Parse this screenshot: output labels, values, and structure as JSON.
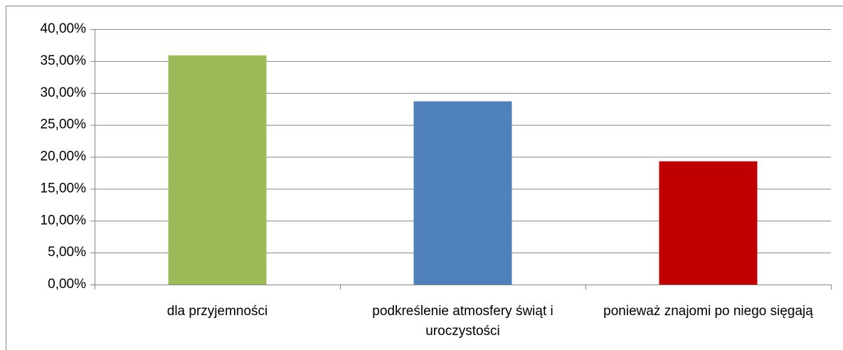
{
  "chart_data": {
    "type": "bar",
    "categories": [
      "dla przyjemności",
      "podkreślenie atmosfery świąt i uroczystości",
      "ponieważ znajomi po niego sięgają"
    ],
    "values": [
      35.9,
      28.7,
      19.3
    ],
    "colors": [
      "#9bbb59",
      "#4f81bd",
      "#c00000"
    ],
    "ylim": [
      0,
      40
    ],
    "yticks": [
      {
        "value": 0,
        "label": "0,00%"
      },
      {
        "value": 5,
        "label": "5,00%"
      },
      {
        "value": 10,
        "label": "10,00%"
      },
      {
        "value": 15,
        "label": "15,00%"
      },
      {
        "value": 20,
        "label": "20,00%"
      },
      {
        "value": 25,
        "label": "25,00%"
      },
      {
        "value": 30,
        "label": "30,00%"
      },
      {
        "value": 35,
        "label": "35,00%"
      },
      {
        "value": 40,
        "label": "40,00%"
      }
    ],
    "grid": true
  }
}
